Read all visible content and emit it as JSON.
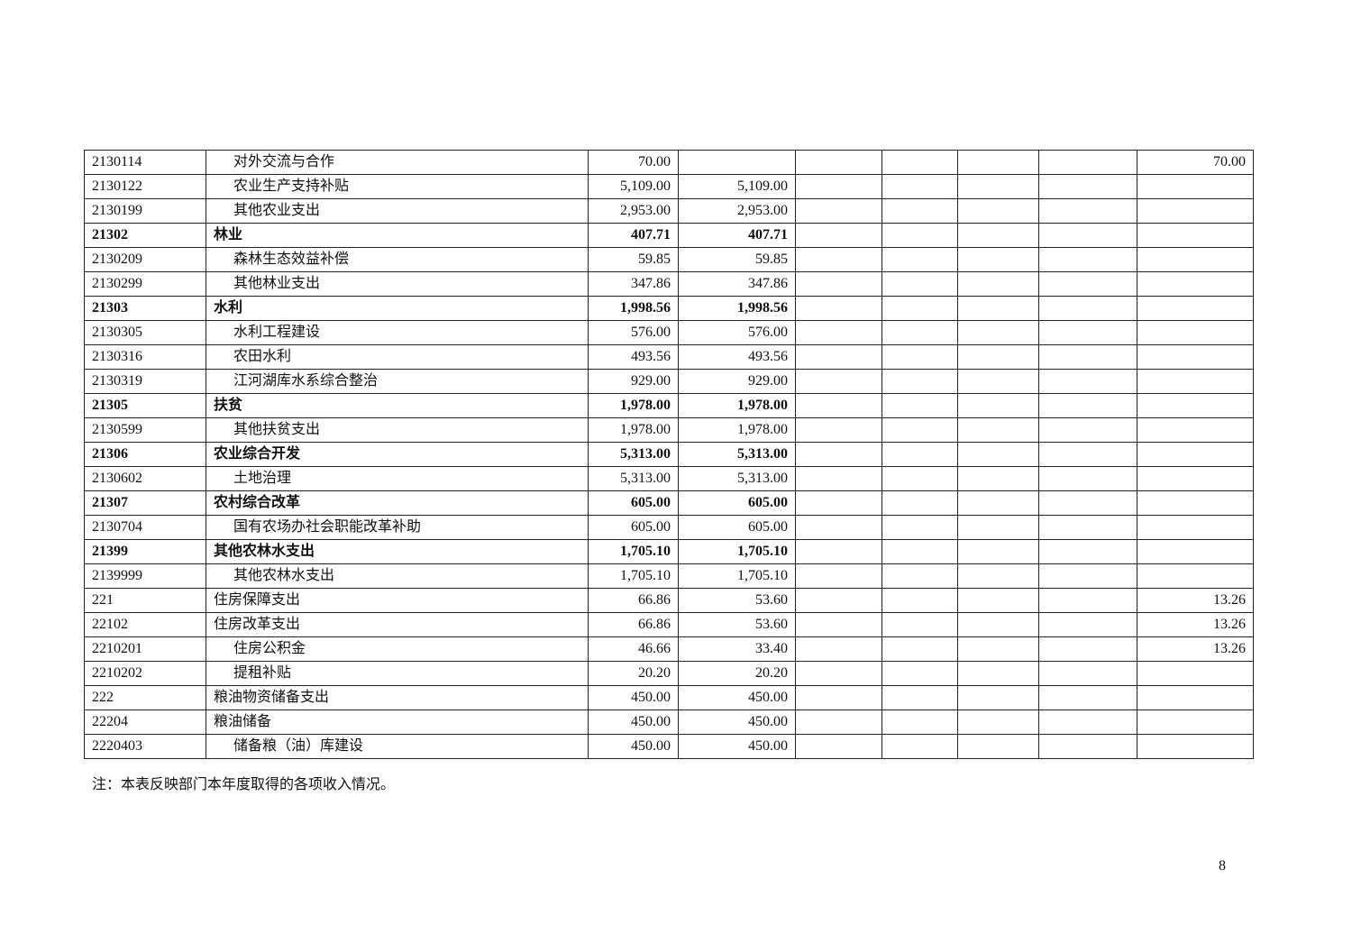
{
  "rows": [
    {
      "code": "2130114",
      "name": "对外交流与合作",
      "bold": false,
      "indent": true,
      "c1": "70.00",
      "c2": "",
      "c7": "70.00"
    },
    {
      "code": "2130122",
      "name": "农业生产支持补贴",
      "bold": false,
      "indent": true,
      "c1": "5,109.00",
      "c2": "5,109.00",
      "c7": ""
    },
    {
      "code": "2130199",
      "name": "其他农业支出",
      "bold": false,
      "indent": true,
      "c1": "2,953.00",
      "c2": "2,953.00",
      "c7": ""
    },
    {
      "code": "21302",
      "name": "林业",
      "bold": true,
      "indent": false,
      "c1": "407.71",
      "c2": "407.71",
      "c7": ""
    },
    {
      "code": "2130209",
      "name": "森林生态效益补偿",
      "bold": false,
      "indent": true,
      "c1": "59.85",
      "c2": "59.85",
      "c7": ""
    },
    {
      "code": "2130299",
      "name": "其他林业支出",
      "bold": false,
      "indent": true,
      "c1": "347.86",
      "c2": "347.86",
      "c7": ""
    },
    {
      "code": "21303",
      "name": "水利",
      "bold": true,
      "indent": false,
      "c1": "1,998.56",
      "c2": "1,998.56",
      "c7": ""
    },
    {
      "code": "2130305",
      "name": "水利工程建设",
      "bold": false,
      "indent": true,
      "c1": "576.00",
      "c2": "576.00",
      "c7": ""
    },
    {
      "code": "2130316",
      "name": "农田水利",
      "bold": false,
      "indent": true,
      "c1": "493.56",
      "c2": "493.56",
      "c7": ""
    },
    {
      "code": "2130319",
      "name": "江河湖库水系综合整治",
      "bold": false,
      "indent": true,
      "c1": "929.00",
      "c2": "929.00",
      "c7": ""
    },
    {
      "code": "21305",
      "name": "扶贫",
      "bold": true,
      "indent": false,
      "c1": "1,978.00",
      "c2": "1,978.00",
      "c7": ""
    },
    {
      "code": "2130599",
      "name": "其他扶贫支出",
      "bold": false,
      "indent": true,
      "c1": "1,978.00",
      "c2": "1,978.00",
      "c7": ""
    },
    {
      "code": "21306",
      "name": "农业综合开发",
      "bold": true,
      "indent": false,
      "c1": "5,313.00",
      "c2": "5,313.00",
      "c7": ""
    },
    {
      "code": "2130602",
      "name": "土地治理",
      "bold": false,
      "indent": true,
      "c1": "5,313.00",
      "c2": "5,313.00",
      "c7": ""
    },
    {
      "code": "21307",
      "name": "农村综合改革",
      "bold": true,
      "indent": false,
      "c1": "605.00",
      "c2": "605.00",
      "c7": ""
    },
    {
      "code": "2130704",
      "name": "国有农场办社会职能改革补助",
      "bold": false,
      "indent": true,
      "c1": "605.00",
      "c2": "605.00",
      "c7": ""
    },
    {
      "code": "21399",
      "name": "其他农林水支出",
      "bold": true,
      "indent": false,
      "c1": "1,705.10",
      "c2": "1,705.10",
      "c7": ""
    },
    {
      "code": "2139999",
      "name": "其他农林水支出",
      "bold": false,
      "indent": true,
      "c1": "1,705.10",
      "c2": "1,705.10",
      "c7": ""
    },
    {
      "code": "221",
      "name": "住房保障支出",
      "bold": false,
      "indent": false,
      "c1": "66.86",
      "c2": "53.60",
      "c7": "13.26"
    },
    {
      "code": "22102",
      "name": "住房改革支出",
      "bold": false,
      "indent": false,
      "c1": "66.86",
      "c2": "53.60",
      "c7": "13.26"
    },
    {
      "code": "2210201",
      "name": "住房公积金",
      "bold": false,
      "indent": true,
      "c1": "46.66",
      "c2": "33.40",
      "c7": "13.26"
    },
    {
      "code": "2210202",
      "name": "提租补贴",
      "bold": false,
      "indent": true,
      "c1": "20.20",
      "c2": "20.20",
      "c7": ""
    },
    {
      "code": "222",
      "name": "粮油物资储备支出",
      "bold": false,
      "indent": false,
      "c1": "450.00",
      "c2": "450.00",
      "c7": ""
    },
    {
      "code": "22204",
      "name": "粮油储备",
      "bold": false,
      "indent": false,
      "c1": "450.00",
      "c2": "450.00",
      "c7": ""
    },
    {
      "code": "2220403",
      "name": "储备粮（油）库建设",
      "bold": false,
      "indent": true,
      "c1": "450.00",
      "c2": "450.00",
      "c7": ""
    }
  ],
  "note": "注：本表反映部门本年度取得的各项收入情况。",
  "page_number": "8"
}
